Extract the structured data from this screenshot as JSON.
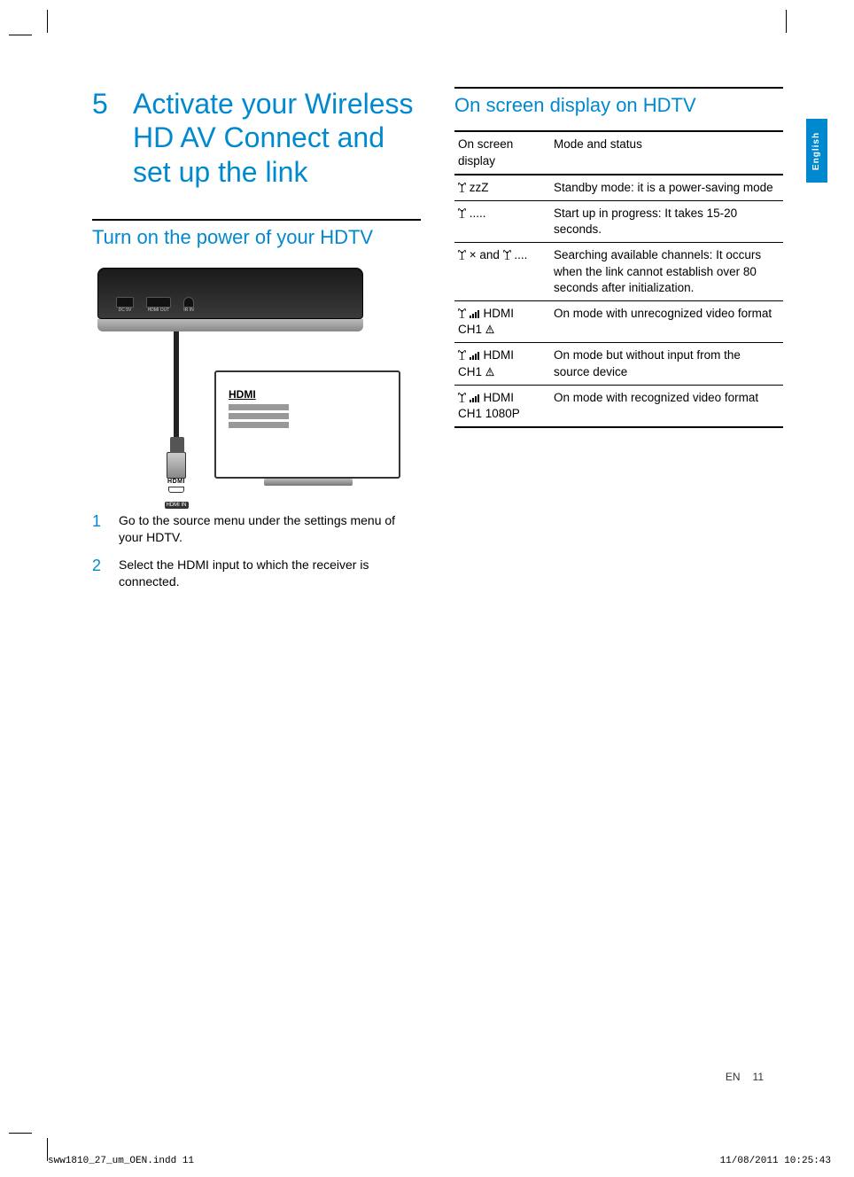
{
  "chapter": {
    "num": "5",
    "title": "Activate your Wireless HD AV Connect and set up the link"
  },
  "section1": {
    "title": "Turn on the power of your HDTV"
  },
  "diagram": {
    "hdmi_menu_title": "HDMI",
    "hdmi_badge": "HDMI",
    "hdmi_in": "HDMI IN",
    "ports": {
      "dc": "DC 5V",
      "hdmi_out": "HDMI OUT",
      "ir": "IR IN"
    }
  },
  "steps": [
    {
      "num": "1",
      "text": "Go to the source menu under the settings menu of your HDTV."
    },
    {
      "num": "2",
      "text": "Select the HDMI input to which the receiver is connected."
    }
  ],
  "section2": {
    "title": "On screen display on HDTV"
  },
  "table": {
    "head": {
      "c1": "On screen display",
      "c2": "Mode and status"
    },
    "rows": [
      {
        "c1_icons": "a",
        "c1_extra": "zzZ",
        "c2": "Standby mode: it is a power-saving mode"
      },
      {
        "c1_icons": "a",
        "c1_extra": ".....",
        "c2": "Start up in progress: It takes 15-20 seconds."
      },
      {
        "c1_icons": "axanda",
        "c1_extra": "",
        "c2": "Searching available channels: It occurs when the link cannot establish over 80 seconds after initialization."
      },
      {
        "c1_icons": "ab",
        "c1_extra": "HDMI CH1",
        "warn": true,
        "c2": "On mode with unrecognized video format"
      },
      {
        "c1_icons": "ab",
        "c1_extra": "HDMI CH1",
        "warn": true,
        "c2": "On mode but without input from the source device"
      },
      {
        "c1_icons": "ab",
        "c1_extra": "HDMI CH1 1080P",
        "warn": false,
        "c2": "On mode with recognized video format"
      }
    ]
  },
  "lang_tab": "English",
  "footer": {
    "lang": "EN",
    "page": "11"
  },
  "print": {
    "file": "sww1810_27_um_OEN.indd   11",
    "stamp": "11/08/2011   10:25:43"
  },
  "colors": {
    "accent": "#0089cf"
  }
}
